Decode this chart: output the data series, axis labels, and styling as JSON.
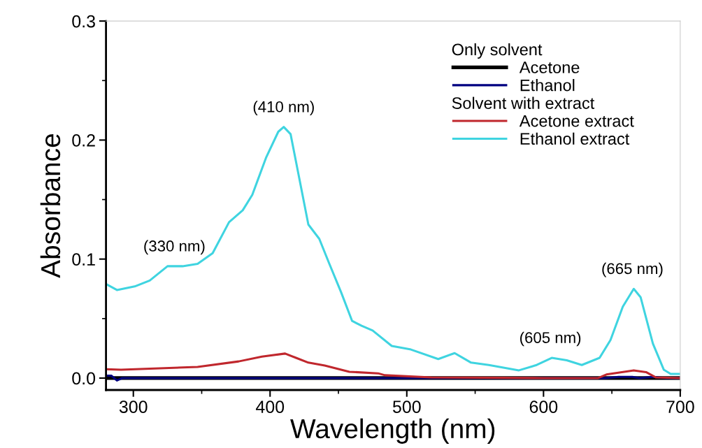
{
  "chart_data": {
    "type": "line",
    "xlabel": "Wavelength (nm)",
    "ylabel": "Absorbance",
    "xlim": [
      280,
      700
    ],
    "xticks": [
      300,
      400,
      500,
      600,
      700
    ],
    "ylim": [
      -0.01,
      0.3
    ],
    "yticks": [
      {
        "value": 0,
        "label": "0.0"
      },
      0.1,
      0.2,
      0.3
    ],
    "legend": "top right",
    "grid": false,
    "marker": "none",
    "line_style": "solid",
    "annotations": [
      "Only solvent",
      "Solvent with extract",
      {
        "text": "(330 nm)",
        "x": 330,
        "y": 0.094
      },
      {
        "text": "(410 nm)",
        "x": 410,
        "y": 0.211
      },
      {
        "text": "(605 nm)",
        "x": 605,
        "y": 0.017
      },
      {
        "text": "(665 nm)",
        "x": 665,
        "y": 0.075
      }
    ],
    "series": [
      {
        "name": "Acetone",
        "color": "#000000",
        "x": [
          280,
          400,
          500,
          600,
          700
        ],
        "values": [
          0.0,
          0.0,
          0.0,
          0.0,
          0.0
        ]
      },
      {
        "name": "Ethanol",
        "color": "#000080",
        "x": [
          280,
          284,
          288,
          292,
          300,
          400,
          500,
          600,
          645,
          655,
          665,
          670,
          680,
          690,
          700
        ],
        "values": [
          0.002,
          0.002,
          -0.002,
          0.0,
          0.0,
          0.0,
          0.0,
          0.0,
          0.0,
          0.001,
          0.001,
          0.0,
          0.001,
          0.0,
          0.0
        ]
      },
      {
        "name": "Acetone extract",
        "color": "#c0272d",
        "x": [
          280,
          291,
          347,
          377,
          394,
          411,
          419,
          428,
          440,
          458,
          479,
          484,
          518,
          600,
          640,
          646,
          666,
          675,
          682,
          700
        ],
        "values": [
          0.0075,
          0.007,
          0.0094,
          0.014,
          0.018,
          0.0206,
          0.017,
          0.013,
          0.0106,
          0.0053,
          0.004,
          0.0024,
          0.0006,
          0.0,
          0.0,
          0.003,
          0.0065,
          0.005,
          0.0006,
          0.0
        ]
      },
      {
        "name": "Ethanol extract",
        "color": "#3fd4e0",
        "x": [
          280,
          288,
          301,
          312,
          325,
          336,
          347,
          358,
          370,
          380,
          387,
          397,
          406,
          410,
          415,
          421,
          428,
          436,
          443,
          452,
          460,
          467,
          475,
          489,
          503,
          523,
          535,
          547,
          560,
          582,
          595,
          606,
          617,
          628,
          641,
          649,
          658,
          666,
          671,
          680,
          688,
          693,
          700
        ],
        "values": [
          0.079,
          0.074,
          0.077,
          0.082,
          0.094,
          0.094,
          0.096,
          0.105,
          0.131,
          0.141,
          0.154,
          0.185,
          0.207,
          0.211,
          0.205,
          0.17,
          0.129,
          0.117,
          0.097,
          0.072,
          0.048,
          0.044,
          0.04,
          0.027,
          0.024,
          0.016,
          0.021,
          0.013,
          0.011,
          0.0065,
          0.011,
          0.017,
          0.015,
          0.011,
          0.017,
          0.032,
          0.06,
          0.075,
          0.068,
          0.029,
          0.007,
          0.0035,
          0.0035
        ]
      }
    ]
  }
}
